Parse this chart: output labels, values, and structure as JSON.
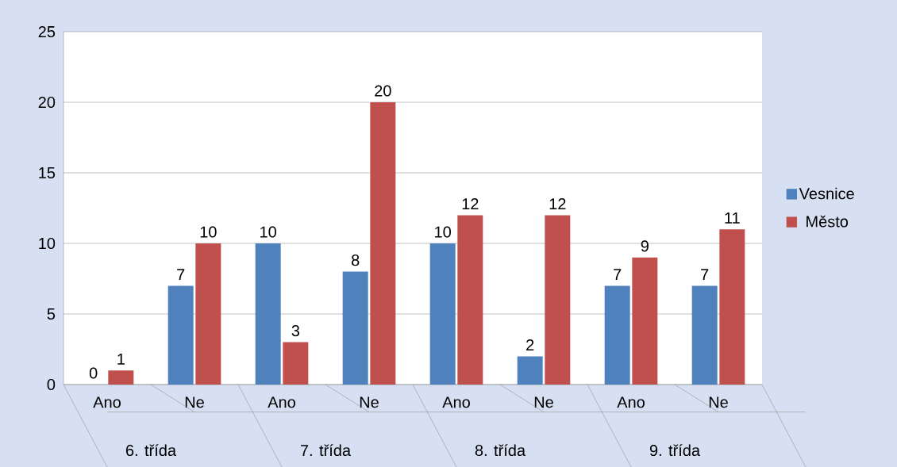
{
  "chart_data": {
    "type": "bar",
    "categories": [
      "Ano",
      "Ne",
      "Ano",
      "Ne",
      "Ano",
      "Ne",
      "Ano",
      "Ne"
    ],
    "series": [
      {
        "name": "Vesnice",
        "color": "#4f81bd",
        "values": [
          0,
          7,
          10,
          8,
          10,
          2,
          7,
          7
        ]
      },
      {
        "name": "Město",
        "color": "#c0504d",
        "values": [
          1,
          10,
          3,
          20,
          12,
          12,
          9,
          11
        ]
      }
    ],
    "annotations": [
      "6. třída",
      "7. třída",
      "8. třída",
      "9. třída"
    ],
    "ylim": [
      0,
      25
    ],
    "yticks": [
      0,
      5,
      10,
      15,
      20,
      25
    ],
    "grid": "y",
    "legend": "right",
    "data_labels": true
  }
}
